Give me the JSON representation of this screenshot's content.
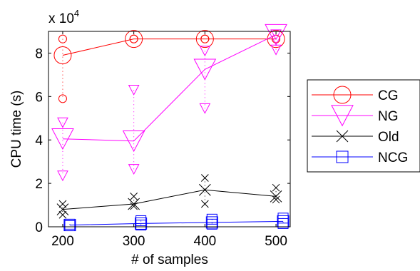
{
  "chart_data": {
    "type": "line",
    "xlabel": "# of samples",
    "ylabel": "CPU time (s)",
    "y_multiplier_label": "x 10",
    "y_multiplier_exponent": "4",
    "xlim": [
      180,
      520
    ],
    "ylim": [
      0,
      9
    ],
    "xticks": [
      200,
      300,
      400,
      500
    ],
    "yticks": [
      0,
      2,
      4,
      6,
      8
    ],
    "grid": false,
    "legend_position": "outside-right",
    "series": [
      {
        "name": "CG",
        "color": "#ff0000",
        "marker": "circle",
        "x": [
          200,
          300,
          400,
          500
        ],
        "mean": [
          7.9,
          8.65,
          8.65,
          8.65
        ],
        "max": [
          8.65,
          8.65,
          8.65,
          8.65
        ],
        "min": [
          5.9,
          8.65,
          8.65,
          8.65
        ]
      },
      {
        "name": "NG",
        "color": "#ff00ff",
        "marker": "triangle-down",
        "x": [
          200,
          300,
          400,
          500
        ],
        "mean": [
          4.05,
          3.95,
          7.25,
          8.85
        ],
        "max": [
          4.8,
          6.3,
          8.1,
          8.85
        ],
        "min": [
          2.35,
          2.65,
          5.45,
          8.15
        ]
      },
      {
        "name": "Old",
        "color": "#000000",
        "marker": "x",
        "x": [
          200,
          300,
          400,
          500
        ],
        "mean": [
          0.8,
          1.05,
          1.7,
          1.4
        ],
        "max": [
          1.05,
          1.4,
          2.25,
          1.8
        ],
        "min": [
          0.55,
          0.95,
          1.05,
          1.25
        ]
      },
      {
        "name": "NCG",
        "color": "#0000ff",
        "marker": "square",
        "x": [
          210,
          310,
          410,
          510
        ],
        "mean": [
          0.08,
          0.15,
          0.2,
          0.25
        ],
        "max": [
          0.12,
          0.28,
          0.35,
          0.4
        ],
        "min": [
          0.05,
          0.08,
          0.12,
          0.15
        ]
      }
    ]
  }
}
